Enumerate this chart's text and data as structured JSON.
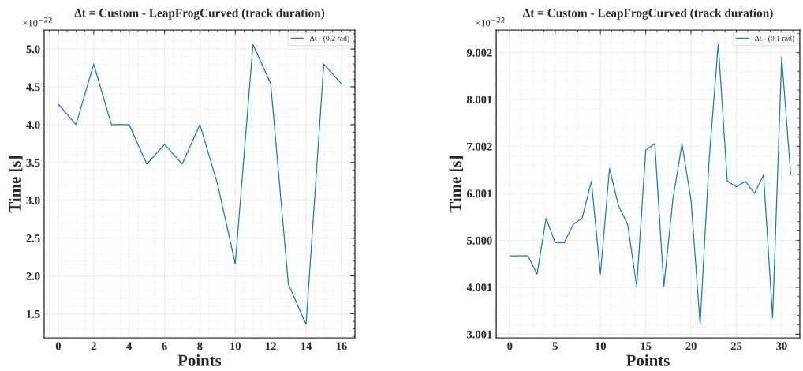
{
  "chart_data": [
    {
      "type": "line",
      "title": "Δt = Custom - LeapFrogCurved (track duration)",
      "xlabel": "Points",
      "ylabel": "Time [s]",
      "annotations": [
        "×10$^{−22}$"
      ],
      "x": [
        0,
        1,
        2,
        3,
        4,
        5,
        6,
        7,
        8,
        9,
        10,
        11,
        12,
        13,
        14,
        15,
        16
      ],
      "series": [
        {
          "name": "Δt - (0.2 rad)",
          "color": "#1f77b4",
          "values": [
            4.27,
            4.0,
            4.8,
            4.0,
            4.0,
            3.48,
            3.74,
            3.48,
            4.0,
            3.21,
            2.16,
            5.06,
            4.54,
            1.89,
            1.36,
            4.8,
            4.54
          ]
        }
      ],
      "xlim": [
        -0.8,
        16.76
      ],
      "ylim": [
        1.18,
        5.25
      ],
      "xticks": [
        0,
        2,
        4,
        6,
        8,
        10,
        12,
        14,
        16
      ],
      "yticks": [
        {
          "value": 1.5,
          "label": "1.5"
        },
        {
          "value": 2.0,
          "label": "2.0"
        },
        {
          "value": 2.5,
          "label": "2.5"
        },
        {
          "value": 3.0,
          "label": "3.0"
        },
        {
          "value": 3.5,
          "label": "3.5"
        },
        {
          "value": 4.0,
          "label": "4.0"
        },
        {
          "value": 4.5,
          "label": "4.5"
        },
        {
          "value": 5.0,
          "label": "5.0"
        }
      ],
      "grid": true,
      "legend": "top right"
    },
    {
      "type": "line",
      "title": "Δt = Custom - LeapFrogCurved (track duration)",
      "xlabel": "Points",
      "ylabel": "Time [s]",
      "annotations": [
        "×10$^{−22}$"
      ],
      "x": [
        0,
        1,
        2,
        3,
        4,
        5,
        6,
        7,
        8,
        9,
        10,
        11,
        12,
        13,
        14,
        15,
        16,
        17,
        18,
        19,
        20,
        21,
        22,
        23,
        24,
        25,
        26,
        27,
        28,
        29,
        30,
        31
      ],
      "series": [
        {
          "name": "Δt - (0.1 rad)",
          "color": "#1f77b4",
          "values": [
            4.67,
            4.67,
            4.67,
            4.28,
            5.47,
            4.95,
            4.95,
            5.34,
            5.48,
            6.26,
            4.28,
            6.53,
            5.73,
            5.34,
            4.02,
            6.92,
            7.06,
            4.02,
            5.88,
            7.06,
            5.85,
            3.21,
            6.73,
            9.18,
            6.26,
            6.14,
            6.26,
            6.0,
            6.39,
            3.35,
            8.91,
            6.39
          ]
        }
      ],
      "xlim": [
        -1.5,
        32.0
      ],
      "ylim": [
        2.92,
        9.48
      ],
      "xticks": [
        0,
        5,
        10,
        15,
        20,
        25,
        30
      ],
      "yticks": [
        {
          "value": 3.001,
          "label": "3.001"
        },
        {
          "value": 4.001,
          "label": "4.001"
        },
        {
          "value": 5.0,
          "label": "5.000"
        },
        {
          "value": 6.001,
          "label": "6.001"
        },
        {
          "value": 7.002,
          "label": "7.002"
        },
        {
          "value": 8.001,
          "label": "8.001"
        },
        {
          "value": 9.002,
          "label": "9.002"
        }
      ],
      "grid": true,
      "legend": "top right"
    }
  ]
}
